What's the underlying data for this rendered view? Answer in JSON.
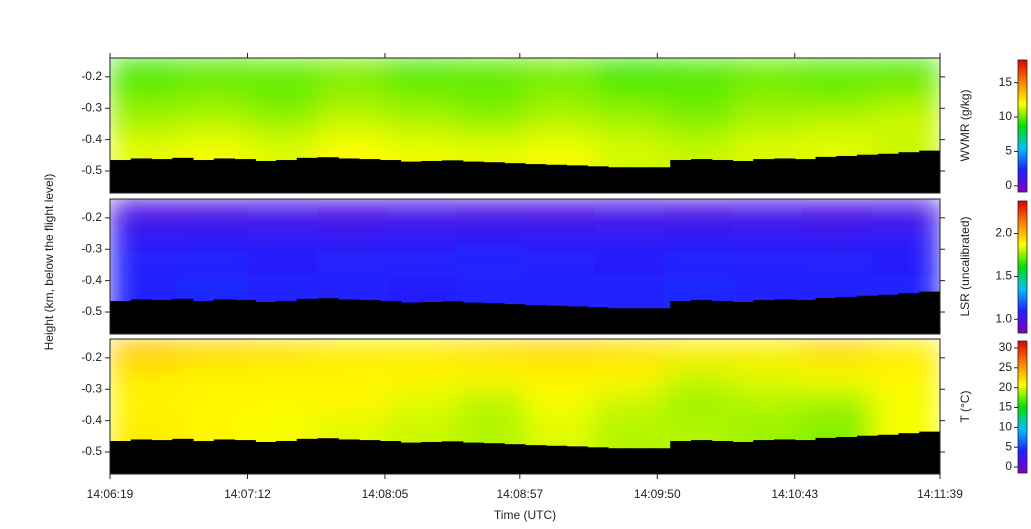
{
  "chart_data": {
    "type": "heatmap",
    "ylabel": "Height (km, below the flight level)",
    "xlabel": "Time (UTC)",
    "xlim": [
      "14:06:19",
      "14:11:39"
    ],
    "xticks": [
      "14:06:19",
      "14:07:12",
      "14:08:05",
      "14:08:57",
      "14:09:50",
      "14:10:43",
      "14:11:39"
    ],
    "ylim": [
      -0.57,
      -0.14
    ],
    "yticks": [
      -0.2,
      -0.3,
      -0.4,
      -0.5
    ],
    "colormap": [
      "#8000c0",
      "#2020ff",
      "#00c0ff",
      "#00e000",
      "#ffff00",
      "#ff8000",
      "#e00000"
    ],
    "surface_color": "#000000",
    "surface": [
      -0.465,
      -0.46,
      -0.462,
      -0.458,
      -0.465,
      -0.46,
      -0.462,
      -0.468,
      -0.465,
      -0.458,
      -0.456,
      -0.46,
      -0.462,
      -0.465,
      -0.47,
      -0.468,
      -0.466,
      -0.47,
      -0.472,
      -0.475,
      -0.478,
      -0.48,
      -0.482,
      -0.485,
      -0.488,
      -0.488,
      -0.488,
      -0.465,
      -0.462,
      -0.465,
      -0.468,
      -0.462,
      -0.46,
      -0.462,
      -0.455,
      -0.452,
      -0.448,
      -0.445,
      -0.44,
      -0.435
    ],
    "panels": [
      {
        "colorbar_label": "WVMR (g/kg)",
        "clim": [
          -0.9,
          18.3
        ],
        "cticks": [
          0,
          5,
          10,
          15
        ],
        "z": [
          [
            9.5,
            9.8,
            10,
            10.2,
            9.6,
            9.9,
            10.1,
            9.4,
            9.7,
            10,
            9.8,
            9.6
          ],
          [
            10.2,
            10.4,
            10,
            10.6,
            10.3,
            10,
            10.5,
            10.1,
            9.9,
            10.4,
            10.2,
            10.6
          ],
          [
            10.8,
            11,
            10.7,
            11.2,
            10.9,
            10.6,
            11,
            10.8,
            10.4,
            10.9,
            11.1,
            11.3
          ],
          [
            11.6,
            11.8,
            11.5,
            11.9,
            11.7,
            11.6,
            11.8,
            11.4,
            11.2,
            11.5,
            11.6,
            11.2
          ]
        ]
      },
      {
        "colorbar_label": "LSR (uncalibrated)",
        "clim": [
          0.84,
          2.38
        ],
        "cticks": [
          {
            "value": 1,
            "label": "1.0"
          },
          {
            "value": 1.5,
            "label": "1.5"
          },
          {
            "value": 2,
            "label": "2.0"
          }
        ],
        "z": [
          [
            0.98,
            0.98,
            0.99,
            0.98,
            0.99,
            0.98,
            0.98,
            0.99,
            0.98,
            0.99,
            0.98,
            0.99
          ],
          [
            1.06,
            1.07,
            1.06,
            1.05,
            1.06,
            1.07,
            1.06,
            1.06,
            1.07,
            1.06,
            1.05,
            1.06
          ],
          [
            1.1,
            1.1,
            1.09,
            1.1,
            1.1,
            1.11,
            1.1,
            1.09,
            1.1,
            1.1,
            1.1,
            1.09
          ],
          [
            1.1,
            1.11,
            1.1,
            1.1,
            1.09,
            1.1,
            1.1,
            1.1,
            1.11,
            1.1,
            1.1,
            1.1
          ]
        ]
      },
      {
        "colorbar_label": "T (°C)",
        "clim": [
          -1.5,
          31.75
        ],
        "cticks": [
          0,
          5,
          10,
          15,
          20,
          25,
          30
        ],
        "z": [
          [
            23,
            22.5,
            22,
            21.5,
            21.5,
            22,
            22.5,
            22,
            21.5,
            21.5,
            22.5,
            21.5
          ],
          [
            21.5,
            21,
            21,
            21,
            21,
            21,
            21,
            21,
            19.5,
            20,
            20.5,
            21
          ],
          [
            21,
            21,
            21,
            21,
            20,
            19,
            20.5,
            19.5,
            18.5,
            19,
            18.5,
            20.5
          ],
          [
            21.5,
            21,
            20.5,
            20,
            19.5,
            19,
            20,
            19,
            19,
            18.5,
            18,
            20.5
          ]
        ]
      }
    ]
  }
}
